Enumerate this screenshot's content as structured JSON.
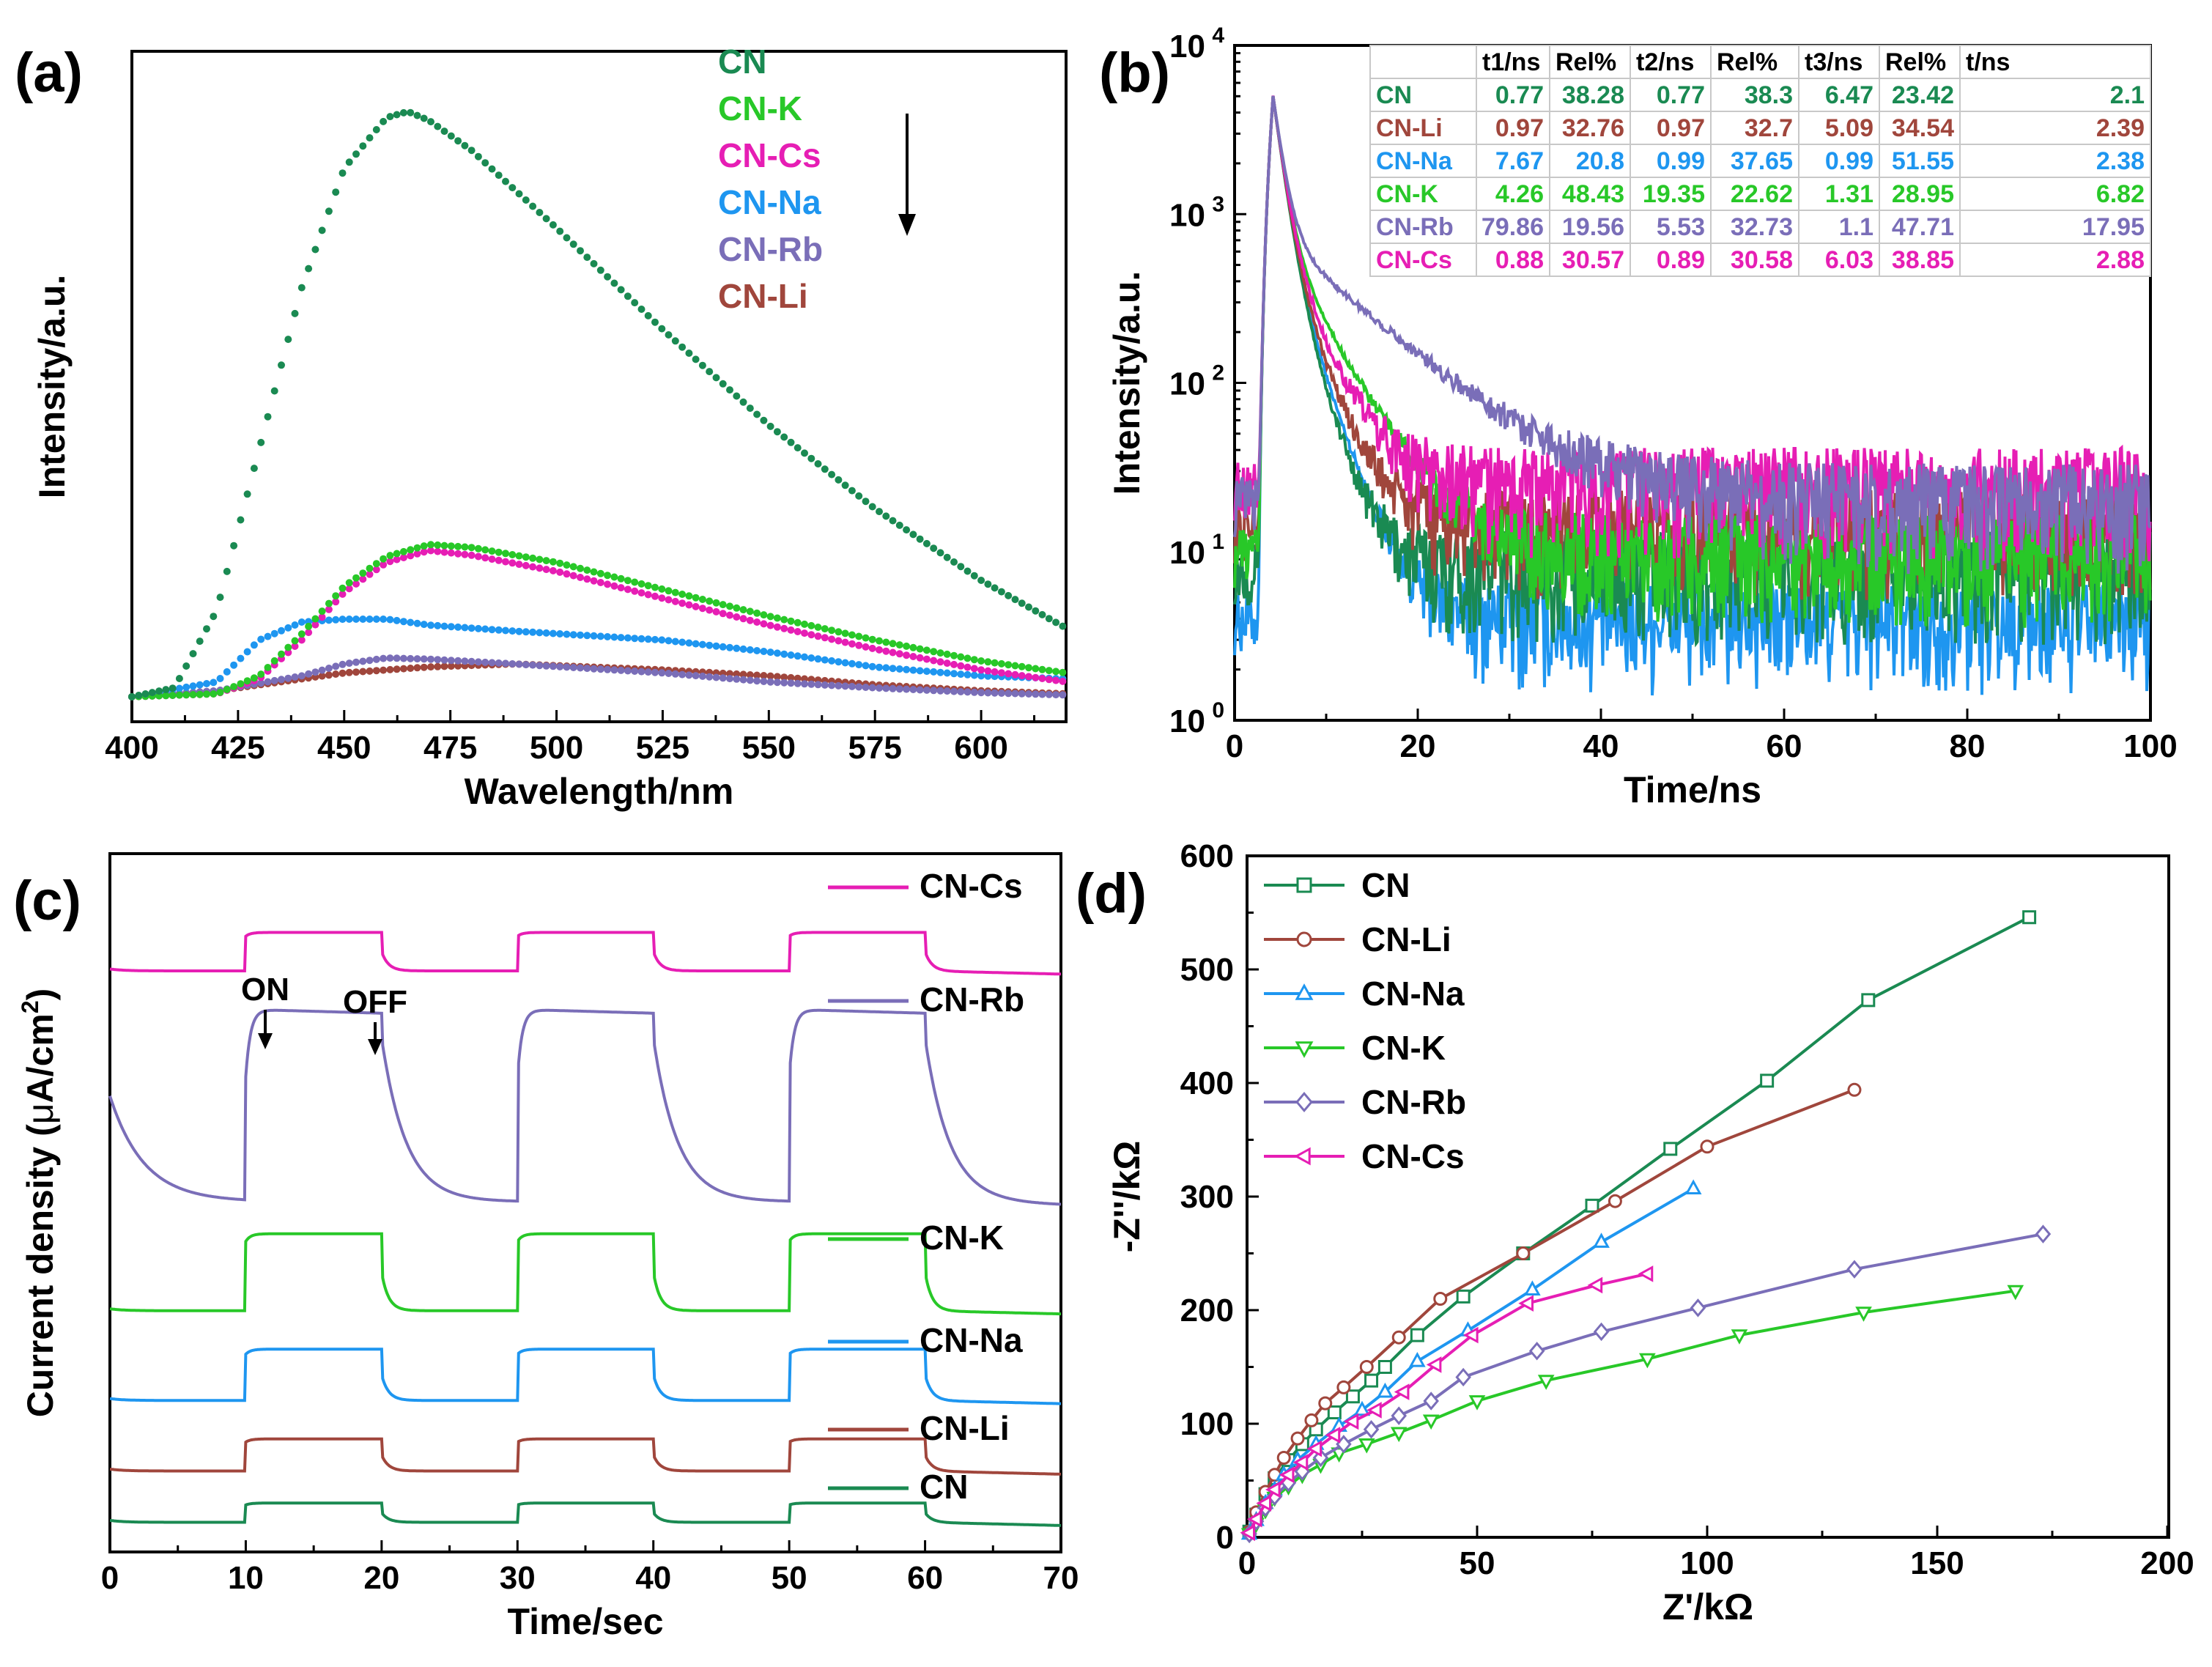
{
  "colors": {
    "CN": "#1a8a52",
    "CN-Li": "#a0463c",
    "CN-Na": "#1e96f0",
    "CN-K": "#28c828",
    "CN-Rb": "#7a6eb8",
    "CN-Cs": "#e61eb4"
  },
  "chart_data": [
    {
      "panel": "(a)",
      "type": "scatter",
      "xlabel": "Wavelength/nm",
      "ylabel": "Intensity/a.u.",
      "xlim": [
        400,
        620
      ],
      "xticks": [
        "400",
        "425",
        "450",
        "475",
        "500",
        "525",
        "550",
        "575",
        "600"
      ],
      "ylim": [
        0,
        1000
      ],
      "legend": [
        "CN",
        "CN-K",
        "CN-Cs",
        "CN-Na",
        "CN-Rb",
        "CN-Li"
      ],
      "legend_position": "top-right",
      "annotation": "downward arrow",
      "series": [
        {
          "name": "CN",
          "x": [
            400,
            410,
            420,
            430,
            440,
            450,
            460,
            465,
            470,
            480,
            500,
            525,
            550,
            575,
            600,
            620
          ],
          "values": [
            5,
            20,
            150,
            420,
            690,
            890,
            975,
            985,
            970,
            920,
            790,
            620,
            460,
            320,
            200,
            120
          ]
        },
        {
          "name": "CN-K",
          "x": [
            400,
            420,
            430,
            440,
            450,
            460,
            470,
            480,
            500,
            525,
            550,
            575,
            600,
            620
          ],
          "values": [
            5,
            10,
            40,
            110,
            190,
            240,
            260,
            255,
            230,
            185,
            140,
            100,
            65,
            45
          ]
        },
        {
          "name": "CN-Cs",
          "x": [
            400,
            420,
            430,
            440,
            450,
            460,
            470,
            480,
            500,
            525,
            550,
            575,
            600,
            620
          ],
          "values": [
            5,
            10,
            35,
            100,
            180,
            230,
            250,
            242,
            215,
            170,
            125,
            85,
            50,
            30
          ]
        },
        {
          "name": "CN-Na",
          "x": [
            400,
            420,
            430,
            440,
            450,
            460,
            470,
            490,
            525,
            550,
            575,
            600,
            620
          ],
          "values": [
            5,
            30,
            100,
            130,
            135,
            135,
            125,
            115,
            100,
            80,
            55,
            40,
            35
          ]
        },
        {
          "name": "CN-Rb",
          "x": [
            400,
            420,
            440,
            450,
            460,
            470,
            490,
            525,
            550,
            575,
            600,
            620
          ],
          "values": [
            5,
            15,
            40,
            60,
            70,
            68,
            60,
            45,
            30,
            20,
            12,
            8
          ]
        },
        {
          "name": "CN-Li",
          "x": [
            400,
            420,
            440,
            450,
            460,
            470,
            490,
            525,
            550,
            575,
            600,
            620
          ],
          "values": [
            5,
            15,
            35,
            45,
            50,
            55,
            60,
            50,
            40,
            25,
            15,
            10
          ]
        }
      ]
    },
    {
      "panel": "(b)",
      "type": "line",
      "xlabel": "Time/ns",
      "ylabel": "Intensity/a.u.",
      "xlim": [
        0,
        100
      ],
      "xticks": [
        "0",
        "20",
        "40",
        "60",
        "80",
        "100"
      ],
      "yscale": "log",
      "ylim": [
        1,
        10000
      ],
      "ytick_exponents": [
        "0",
        "1",
        "2",
        "3",
        "4"
      ],
      "ytick_base": "10",
      "series": [
        {
          "name": "CN",
          "peak": 5000,
          "baseline": 8,
          "tau": 2.5
        },
        {
          "name": "CN-Li",
          "peak": 5000,
          "baseline": 14,
          "tau": 3.0
        },
        {
          "name": "CN-Na",
          "peak": 5000,
          "baseline": 4,
          "tau": 2.8
        },
        {
          "name": "CN-K",
          "peak": 5000,
          "baseline": 10,
          "tau": 4.5
        },
        {
          "name": "CN-Rb",
          "peak": 5000,
          "baseline": 20,
          "tau": 9.0
        },
        {
          "name": "CN-Cs",
          "peak": 5000,
          "baseline": 25,
          "tau": 3.5
        }
      ],
      "table": {
        "headers": [
          "",
          "t1/ns",
          "Rel%",
          "t2/ns",
          "Rel%",
          "t3/ns",
          "Rel%",
          "t/ns"
        ],
        "rows": [
          [
            "CN",
            "0.77",
            "38.28",
            "0.77",
            "38.3",
            "6.47",
            "23.42",
            "2.1"
          ],
          [
            "CN-Li",
            "0.97",
            "32.76",
            "0.97",
            "32.7",
            "5.09",
            "34.54",
            "2.39"
          ],
          [
            "CN-Na",
            "7.67",
            "20.8",
            "0.99",
            "37.65",
            "0.99",
            "51.55",
            "2.38"
          ],
          [
            "CN-K",
            "4.26",
            "48.43",
            "19.35",
            "22.62",
            "1.31",
            "28.95",
            "6.82"
          ],
          [
            "CN-Rb",
            "79.86",
            "19.56",
            "5.53",
            "32.73",
            "1.1",
            "47.71",
            "17.95"
          ],
          [
            "CN-Cs",
            "0.88",
            "30.57",
            "0.89",
            "30.58",
            "6.03",
            "38.85",
            "2.88"
          ]
        ]
      }
    },
    {
      "panel": "(c)",
      "type": "line",
      "xlabel": "Time/sec",
      "ylabel_main": "Current density (",
      "ylabel_mu": "μ",
      "ylabel_unit": "A/cm",
      "ylabel_sup": "2",
      "ylabel_close": ")",
      "xlim": [
        0,
        70
      ],
      "xticks": [
        "0",
        "10",
        "20",
        "30",
        "40",
        "50",
        "60",
        "70"
      ],
      "ylim": [
        0,
        100
      ],
      "annotations": [
        "ON",
        "OFF"
      ],
      "on_intervals": [
        [
          10,
          20
        ],
        [
          30,
          40
        ],
        [
          50,
          60
        ]
      ],
      "series": [
        {
          "name": "CN-Cs",
          "base": 88,
          "amp": 6
        },
        {
          "name": "CN-Rb",
          "base": 52,
          "amp": 30
        },
        {
          "name": "CN-K",
          "base": 35,
          "amp": 12
        },
        {
          "name": "CN-Na",
          "base": 21,
          "amp": 8
        },
        {
          "name": "CN-Li",
          "base": 10,
          "amp": 5
        },
        {
          "name": "CN",
          "base": 2,
          "amp": 3
        }
      ]
    },
    {
      "panel": "(d)",
      "type": "line",
      "xlabel": "Z'/kΩ",
      "ylabel": "-Z''/kΩ",
      "xlim": [
        0,
        200
      ],
      "xticks": [
        "0",
        "50",
        "100",
        "150",
        "200"
      ],
      "ylim": [
        0,
        600
      ],
      "yticks": [
        "0",
        "100",
        "200",
        "300",
        "400",
        "500",
        "600"
      ],
      "legend": [
        "CN",
        "CN-Li",
        "CN-Na",
        "CN-K",
        "CN-Rb",
        "CN-Cs"
      ],
      "legend_position": "top-left",
      "series": [
        {
          "name": "CN",
          "marker": "square",
          "x": [
            0.5,
            2,
            4,
            6,
            9,
            12,
            15,
            19,
            23,
            27,
            30,
            37,
            47,
            60,
            75,
            92,
            113,
            135,
            170
          ],
          "values": [
            5,
            20,
            38,
            52,
            68,
            82,
            95,
            110,
            124,
            138,
            150,
            178,
            212,
            250,
            292,
            342,
            402,
            473,
            546
          ]
        },
        {
          "name": "CN-Li",
          "marker": "circle",
          "x": [
            0.5,
            2,
            4,
            6,
            8,
            11,
            14,
            17,
            21,
            26,
            33,
            42,
            60,
            80,
            100,
            132
          ],
          "values": [
            5,
            22,
            40,
            55,
            70,
            87,
            103,
            118,
            132,
            150,
            176,
            210,
            250,
            296,
            344,
            394
          ]
        },
        {
          "name": "CN-Na",
          "marker": "triangle-up",
          "x": [
            0.5,
            2,
            4,
            6,
            8,
            11,
            15,
            20,
            25,
            30,
            37,
            48,
            62,
            77,
            97
          ],
          "values": [
            3,
            15,
            30,
            42,
            55,
            68,
            82,
            98,
            112,
            128,
            155,
            182,
            218,
            260,
            307
          ]
        },
        {
          "name": "CN-K",
          "marker": "triangle-down",
          "x": [
            0.5,
            2,
            4,
            6,
            9,
            12,
            16,
            20,
            26,
            33,
            40,
            50,
            65,
            87,
            107,
            134,
            167
          ],
          "values": [
            3,
            12,
            24,
            35,
            45,
            55,
            64,
            74,
            82,
            92,
            103,
            120,
            138,
            157,
            178,
            198,
            217
          ]
        },
        {
          "name": "CN-Rb",
          "marker": "diamond",
          "x": [
            0.5,
            2,
            4,
            6,
            9,
            12,
            16,
            21,
            27,
            33,
            40,
            47,
            63,
            77,
            98,
            132,
            173
          ],
          "values": [
            3,
            14,
            26,
            36,
            48,
            58,
            70,
            82,
            95,
            107,
            120,
            141,
            164,
            181,
            202,
            236,
            267
          ]
        },
        {
          "name": "CN-Cs",
          "marker": "triangle-left",
          "x": [
            0.5,
            2,
            4,
            6,
            9,
            12,
            15,
            19,
            23,
            28,
            34,
            41,
            49,
            61,
            76,
            87
          ],
          "values": [
            4,
            16,
            30,
            42,
            55,
            66,
            78,
            90,
            102,
            112,
            128,
            152,
            178,
            206,
            222,
            232
          ]
        }
      ]
    }
  ]
}
